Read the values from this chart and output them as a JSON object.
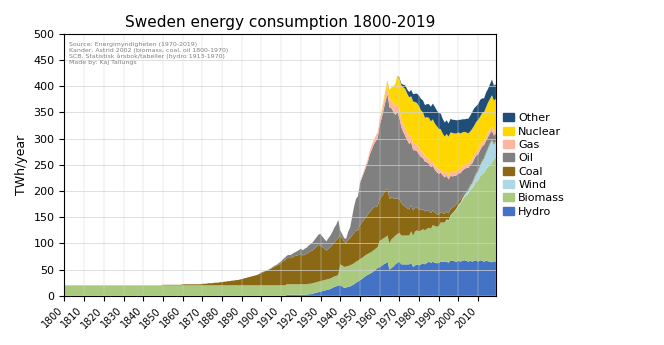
{
  "title": "Sweden energy consumption 1800-2019",
  "ylabel": "TWh/year",
  "source_text": "Source: Energimyndigheten (1970-2019)\nKander, Astrid 2002 (biomass, coal, oil 1800-1970)\nSCB, Statistisk årsbok/tabeller (hydro 1913-1970)\nMade by: Kaj Tallungs",
  "colors": {
    "Hydro": "#4472C4",
    "Biomass": "#a9c97e",
    "Wind": "#add8e6",
    "Coal": "#8B6914",
    "Oil": "#808080",
    "Gas": "#FFB6A0",
    "Nuclear": "#FFD700",
    "Other": "#1F4E79"
  },
  "years": [
    1800,
    1801,
    1802,
    1803,
    1804,
    1805,
    1806,
    1807,
    1808,
    1809,
    1810,
    1811,
    1812,
    1813,
    1814,
    1815,
    1816,
    1817,
    1818,
    1819,
    1820,
    1821,
    1822,
    1823,
    1824,
    1825,
    1826,
    1827,
    1828,
    1829,
    1830,
    1831,
    1832,
    1833,
    1834,
    1835,
    1836,
    1837,
    1838,
    1839,
    1840,
    1841,
    1842,
    1843,
    1844,
    1845,
    1846,
    1847,
    1848,
    1849,
    1850,
    1851,
    1852,
    1853,
    1854,
    1855,
    1856,
    1857,
    1858,
    1859,
    1860,
    1861,
    1862,
    1863,
    1864,
    1865,
    1866,
    1867,
    1868,
    1869,
    1870,
    1871,
    1872,
    1873,
    1874,
    1875,
    1876,
    1877,
    1878,
    1879,
    1880,
    1881,
    1882,
    1883,
    1884,
    1885,
    1886,
    1887,
    1888,
    1889,
    1890,
    1891,
    1892,
    1893,
    1894,
    1895,
    1896,
    1897,
    1898,
    1899,
    1900,
    1901,
    1902,
    1903,
    1904,
    1905,
    1906,
    1907,
    1908,
    1909,
    1910,
    1911,
    1912,
    1913,
    1914,
    1915,
    1916,
    1917,
    1918,
    1919,
    1920,
    1921,
    1922,
    1923,
    1924,
    1925,
    1926,
    1927,
    1928,
    1929,
    1930,
    1931,
    1932,
    1933,
    1934,
    1935,
    1936,
    1937,
    1938,
    1939,
    1940,
    1941,
    1942,
    1943,
    1944,
    1945,
    1946,
    1947,
    1948,
    1949,
    1950,
    1951,
    1952,
    1953,
    1954,
    1955,
    1956,
    1957,
    1958,
    1959,
    1960,
    1961,
    1962,
    1963,
    1964,
    1965,
    1966,
    1967,
    1968,
    1969,
    1970,
    1971,
    1972,
    1973,
    1974,
    1975,
    1976,
    1977,
    1978,
    1979,
    1980,
    1981,
    1982,
    1983,
    1984,
    1985,
    1986,
    1987,
    1988,
    1989,
    1990,
    1991,
    1992,
    1993,
    1994,
    1995,
    1996,
    1997,
    1998,
    1999,
    2000,
    2001,
    2002,
    2003,
    2004,
    2005,
    2006,
    2007,
    2008,
    2009,
    2010,
    2011,
    2012,
    2013,
    2014,
    2015,
    2016,
    2017,
    2018,
    2019
  ],
  "biomass": [
    20,
    20,
    20,
    20,
    20,
    20,
    20,
    20,
    20,
    20,
    20,
    20,
    20,
    20,
    20,
    20,
    20,
    20,
    20,
    20,
    20,
    20,
    20,
    20,
    20,
    20,
    20,
    20,
    20,
    20,
    20,
    20,
    20,
    20,
    20,
    20,
    20,
    20,
    20,
    20,
    20,
    20,
    20,
    20,
    20,
    20,
    20,
    20,
    20,
    20,
    20,
    20,
    20,
    20,
    20,
    20,
    20,
    20,
    20,
    20,
    20,
    20,
    20,
    20,
    20,
    20,
    20,
    20,
    20,
    20,
    20,
    20,
    20,
    20,
    20,
    20,
    20,
    20,
    20,
    20,
    20,
    20,
    20,
    20,
    20,
    20,
    20,
    20,
    20,
    20,
    20,
    20,
    20,
    20,
    20,
    20,
    20,
    20,
    20,
    20,
    20,
    20,
    20,
    20,
    20,
    20,
    20,
    20,
    20,
    20,
    20,
    20,
    20,
    20,
    20,
    20,
    20,
    20,
    20,
    20,
    20,
    20,
    20,
    20,
    20,
    20,
    20,
    20,
    20,
    20,
    20,
    20,
    20,
    20,
    20,
    20,
    20,
    20,
    20,
    20,
    40,
    40,
    40,
    40,
    40,
    40,
    40,
    40,
    40,
    40,
    40,
    40,
    40,
    40,
    40,
    40,
    40,
    40,
    40,
    40,
    50,
    50,
    50,
    50,
    50,
    50,
    55,
    55,
    55,
    55,
    55,
    55,
    55,
    55,
    55,
    55,
    60,
    60,
    65,
    65,
    65,
    65,
    65,
    65,
    65,
    65,
    65,
    70,
    70,
    70,
    70,
    75,
    75,
    75,
    80,
    80,
    85,
    90,
    95,
    100,
    105,
    110,
    115,
    120,
    125,
    130,
    135,
    140,
    145,
    150,
    155,
    160,
    165,
    170,
    175,
    180,
    185,
    190,
    195,
    200
  ],
  "hydro": [
    0,
    0,
    0,
    0,
    0,
    0,
    0,
    0,
    0,
    0,
    0,
    0,
    0,
    0,
    0,
    0,
    0,
    0,
    0,
    0,
    0,
    0,
    0,
    0,
    0,
    0,
    0,
    0,
    0,
    0,
    0,
    0,
    0,
    0,
    0,
    0,
    0,
    0,
    0,
    0,
    0,
    0,
    0,
    0,
    0,
    0,
    0,
    0,
    0,
    0,
    0,
    0,
    0,
    0,
    0,
    0,
    0,
    0,
    0,
    0,
    0,
    0,
    0,
    0,
    0,
    0,
    0,
    0,
    0,
    0,
    0,
    0,
    0,
    0,
    0,
    0,
    0,
    0,
    0,
    0,
    0,
    0,
    0,
    0,
    0,
    0,
    0,
    0,
    0,
    0,
    0,
    0,
    0,
    0,
    0,
    0,
    0,
    0,
    0,
    0,
    0,
    0,
    0,
    0,
    0,
    0,
    0,
    0,
    0,
    0,
    0,
    0,
    0,
    2,
    2,
    2,
    2,
    2,
    2,
    2,
    2,
    2,
    2,
    2,
    3,
    3,
    4,
    5,
    6,
    7,
    8,
    9,
    10,
    11,
    12,
    13,
    15,
    17,
    18,
    20,
    20,
    18,
    15,
    16,
    17,
    18,
    20,
    22,
    25,
    27,
    30,
    32,
    35,
    38,
    40,
    42,
    44,
    47,
    50,
    53,
    55,
    57,
    60,
    62,
    65,
    50,
    53,
    56,
    60,
    63,
    65,
    60,
    60,
    60,
    60,
    60,
    63,
    55,
    58,
    60,
    58,
    60,
    62,
    60,
    63,
    65,
    63,
    65,
    63,
    62,
    63,
    65,
    65,
    65,
    65,
    63,
    68,
    67,
    66,
    65,
    67,
    65,
    67,
    68,
    67,
    65,
    67,
    65,
    67,
    68,
    65,
    68,
    67,
    65,
    67,
    66,
    65,
    64,
    66,
    65
  ],
  "wind": [
    0,
    0,
    0,
    0,
    0,
    0,
    0,
    0,
    0,
    0,
    0,
    0,
    0,
    0,
    0,
    0,
    0,
    0,
    0,
    0,
    0,
    0,
    0,
    0,
    0,
    0,
    0,
    0,
    0,
    0,
    0,
    0,
    0,
    0,
    0,
    0,
    0,
    0,
    0,
    0,
    0,
    0,
    0,
    0,
    0,
    0,
    0,
    0,
    0,
    0,
    0,
    0,
    0,
    0,
    0,
    0,
    0,
    0,
    0,
    0,
    0,
    0,
    0,
    0,
    0,
    0,
    0,
    0,
    0,
    0,
    0,
    0,
    0,
    0,
    0,
    0,
    0,
    0,
    0,
    0,
    0,
    0,
    0,
    0,
    0,
    0,
    0,
    0,
    0,
    0,
    0,
    0,
    0,
    0,
    0,
    0,
    0,
    0,
    0,
    0,
    0,
    0,
    0,
    0,
    0,
    0,
    0,
    0,
    0,
    0,
    0,
    0,
    0,
    0,
    0,
    0,
    0,
    0,
    0,
    0,
    0,
    0,
    0,
    0,
    0,
    0,
    0,
    0,
    0,
    0,
    0,
    0,
    0,
    0,
    0,
    0,
    0,
    0,
    0,
    0,
    0,
    0,
    0,
    0,
    0,
    0,
    0,
    0,
    0,
    0,
    0,
    0,
    0,
    0,
    0,
    0,
    0,
    0,
    0,
    0,
    0,
    0,
    0,
    0,
    0,
    0,
    0,
    0,
    0,
    0,
    0,
    0,
    0,
    0,
    0,
    0,
    0,
    0,
    0,
    0,
    0,
    0,
    0,
    0,
    0,
    0,
    0,
    0,
    0,
    0,
    0,
    0,
    0,
    0,
    1,
    1,
    1,
    1,
    1,
    2,
    2,
    3,
    4,
    5,
    6,
    7,
    8,
    10,
    12,
    15,
    18,
    20,
    25,
    27,
    30,
    35,
    40,
    43,
    28,
    30
  ],
  "coal": [
    0,
    0,
    0,
    0,
    0,
    0,
    0,
    0,
    0,
    0,
    0,
    0,
    0,
    0,
    0,
    0,
    0,
    0,
    0,
    0,
    0,
    0,
    0,
    0,
    0,
    0,
    0,
    0,
    0,
    0,
    0,
    0,
    0,
    0,
    0,
    0,
    0,
    0,
    0,
    0,
    0,
    0,
    0,
    0,
    0,
    0,
    0,
    0,
    0,
    0,
    1,
    1,
    1,
    1,
    1,
    1,
    1,
    1,
    1,
    1,
    2,
    2,
    2,
    2,
    2,
    2,
    2,
    2,
    2,
    2,
    3,
    3,
    3,
    4,
    4,
    4,
    5,
    5,
    5,
    6,
    6,
    7,
    7,
    8,
    8,
    9,
    9,
    10,
    10,
    11,
    12,
    13,
    14,
    15,
    16,
    17,
    18,
    19,
    20,
    22,
    24,
    25,
    27,
    28,
    30,
    32,
    34,
    36,
    38,
    40,
    43,
    46,
    48,
    50,
    50,
    50,
    52,
    54,
    55,
    56,
    58,
    55,
    57,
    58,
    60,
    62,
    63,
    65,
    68,
    70,
    68,
    64,
    60,
    55,
    58,
    60,
    62,
    65,
    68,
    70,
    55,
    52,
    48,
    45,
    50,
    52,
    55,
    58,
    60,
    58,
    65,
    68,
    70,
    72,
    75,
    78,
    80,
    82,
    80,
    78,
    80,
    82,
    85,
    90,
    90,
    85,
    80,
    75,
    70,
    68,
    65,
    62,
    58,
    55,
    52,
    50,
    50,
    48,
    45,
    43,
    42,
    40,
    38,
    36,
    35,
    32,
    30,
    28,
    26,
    24,
    22,
    20,
    18,
    16,
    15,
    13,
    12,
    10,
    9,
    8,
    7,
    6,
    5,
    4,
    3,
    2,
    2,
    2,
    2,
    2,
    2,
    2,
    2,
    2,
    2,
    2,
    2,
    2,
    2,
    2
  ],
  "oil": [
    0,
    0,
    0,
    0,
    0,
    0,
    0,
    0,
    0,
    0,
    0,
    0,
    0,
    0,
    0,
    0,
    0,
    0,
    0,
    0,
    0,
    0,
    0,
    0,
    0,
    0,
    0,
    0,
    0,
    0,
    0,
    0,
    0,
    0,
    0,
    0,
    0,
    0,
    0,
    0,
    0,
    0,
    0,
    0,
    0,
    0,
    0,
    0,
    0,
    0,
    0,
    0,
    0,
    0,
    0,
    0,
    0,
    0,
    0,
    0,
    0,
    0,
    0,
    0,
    0,
    0,
    0,
    0,
    0,
    0,
    0,
    0,
    0,
    0,
    0,
    0,
    0,
    0,
    0,
    0,
    0,
    0,
    0,
    0,
    0,
    0,
    0,
    0,
    0,
    0,
    0,
    0,
    0,
    0,
    0,
    0,
    0,
    0,
    0,
    0,
    1,
    1,
    1,
    1,
    1,
    1,
    2,
    2,
    2,
    3,
    3,
    4,
    5,
    5,
    6,
    6,
    7,
    7,
    8,
    9,
    10,
    10,
    11,
    12,
    13,
    14,
    15,
    17,
    18,
    20,
    22,
    20,
    18,
    18,
    20,
    22,
    25,
    28,
    30,
    35,
    10,
    8,
    7,
    8,
    15,
    20,
    35,
    50,
    60,
    65,
    80,
    85,
    90,
    95,
    100,
    110,
    115,
    120,
    125,
    130,
    140,
    150,
    160,
    170,
    180,
    175,
    170,
    165,
    160,
    165,
    155,
    145,
    140,
    135,
    130,
    125,
    120,
    115,
    110,
    108,
    105,
    100,
    98,
    95,
    92,
    90,
    88,
    85,
    82,
    80,
    78,
    75,
    72,
    70,
    68,
    65,
    63,
    60,
    58,
    55,
    53,
    50,
    48,
    45,
    43,
    40,
    38,
    36,
    35,
    33,
    30,
    28,
    26,
    24,
    22,
    20,
    18,
    16,
    15,
    13
  ],
  "gas": [
    0,
    0,
    0,
    0,
    0,
    0,
    0,
    0,
    0,
    0,
    0,
    0,
    0,
    0,
    0,
    0,
    0,
    0,
    0,
    0,
    0,
    0,
    0,
    0,
    0,
    0,
    0,
    0,
    0,
    0,
    0,
    0,
    0,
    0,
    0,
    0,
    0,
    0,
    0,
    0,
    0,
    0,
    0,
    0,
    0,
    0,
    0,
    0,
    0,
    0,
    0,
    0,
    0,
    0,
    0,
    0,
    0,
    0,
    0,
    0,
    0,
    0,
    0,
    0,
    0,
    0,
    0,
    0,
    0,
    0,
    0,
    0,
    0,
    0,
    0,
    0,
    0,
    0,
    0,
    0,
    0,
    0,
    0,
    0,
    0,
    0,
    0,
    0,
    0,
    0,
    0,
    0,
    0,
    0,
    0,
    0,
    0,
    0,
    0,
    0,
    0,
    0,
    0,
    0,
    0,
    0,
    0,
    0,
    0,
    0,
    0,
    0,
    0,
    0,
    0,
    0,
    0,
    0,
    0,
    0,
    0,
    0,
    0,
    0,
    0,
    0,
    0,
    0,
    0,
    0,
    0,
    0,
    0,
    0,
    0,
    0,
    0,
    0,
    0,
    0,
    0,
    0,
    0,
    0,
    0,
    0,
    0,
    0,
    0,
    0,
    2,
    3,
    4,
    5,
    6,
    7,
    8,
    9,
    10,
    11,
    12,
    13,
    14,
    15,
    15,
    15,
    15,
    15,
    15,
    15,
    15,
    15,
    15,
    15,
    14,
    14,
    13,
    13,
    12,
    12,
    12,
    11,
    11,
    10,
    10,
    10,
    9,
    9,
    8,
    8,
    8,
    8,
    8,
    8,
    8,
    8,
    8,
    8,
    8,
    8,
    8,
    8,
    8,
    8,
    8,
    8,
    8,
    8,
    8,
    8,
    8,
    8,
    8,
    8,
    8,
    8,
    8,
    8,
    8,
    8
  ],
  "nuclear": [
    0,
    0,
    0,
    0,
    0,
    0,
    0,
    0,
    0,
    0,
    0,
    0,
    0,
    0,
    0,
    0,
    0,
    0,
    0,
    0,
    0,
    0,
    0,
    0,
    0,
    0,
    0,
    0,
    0,
    0,
    0,
    0,
    0,
    0,
    0,
    0,
    0,
    0,
    0,
    0,
    0,
    0,
    0,
    0,
    0,
    0,
    0,
    0,
    0,
    0,
    0,
    0,
    0,
    0,
    0,
    0,
    0,
    0,
    0,
    0,
    0,
    0,
    0,
    0,
    0,
    0,
    0,
    0,
    0,
    0,
    0,
    0,
    0,
    0,
    0,
    0,
    0,
    0,
    0,
    0,
    0,
    0,
    0,
    0,
    0,
    0,
    0,
    0,
    0,
    0,
    0,
    0,
    0,
    0,
    0,
    0,
    0,
    0,
    0,
    0,
    0,
    0,
    0,
    0,
    0,
    0,
    0,
    0,
    0,
    0,
    0,
    0,
    0,
    0,
    0,
    0,
    0,
    0,
    0,
    0,
    0,
    0,
    0,
    0,
    0,
    0,
    0,
    0,
    0,
    0,
    0,
    0,
    0,
    0,
    0,
    0,
    0,
    0,
    0,
    0,
    0,
    0,
    0,
    0,
    0,
    0,
    0,
    0,
    0,
    0,
    0,
    0,
    0,
    0,
    0,
    0,
    0,
    0,
    0,
    0,
    0,
    2,
    5,
    8,
    12,
    18,
    25,
    35,
    45,
    55,
    60,
    65,
    70,
    75,
    75,
    75,
    75,
    80,
    80,
    80,
    80,
    78,
    76,
    74,
    76,
    78,
    78,
    80,
    80,
    80,
    78,
    75,
    72,
    70,
    72,
    74,
    75,
    75,
    73,
    72,
    70,
    68,
    65,
    63,
    60,
    58,
    56,
    58,
    56,
    56,
    58,
    56,
    56,
    55,
    56,
    58,
    58,
    60,
    59,
    58
  ],
  "other": [
    0,
    0,
    0,
    0,
    0,
    0,
    0,
    0,
    0,
    0,
    0,
    0,
    0,
    0,
    0,
    0,
    0,
    0,
    0,
    0,
    0,
    0,
    0,
    0,
    0,
    0,
    0,
    0,
    0,
    0,
    0,
    0,
    0,
    0,
    0,
    0,
    0,
    0,
    0,
    0,
    0,
    0,
    0,
    0,
    0,
    0,
    0,
    0,
    0,
    0,
    0,
    0,
    0,
    0,
    0,
    0,
    0,
    0,
    0,
    0,
    0,
    0,
    0,
    0,
    0,
    0,
    0,
    0,
    0,
    0,
    0,
    0,
    0,
    0,
    0,
    0,
    0,
    0,
    0,
    0,
    0,
    0,
    0,
    0,
    0,
    0,
    0,
    0,
    0,
    0,
    0,
    0,
    0,
    0,
    0,
    0,
    0,
    0,
    0,
    0,
    0,
    0,
    0,
    0,
    0,
    0,
    0,
    0,
    0,
    0,
    0,
    0,
    0,
    0,
    0,
    0,
    0,
    0,
    0,
    0,
    0,
    0,
    0,
    0,
    0,
    0,
    0,
    0,
    0,
    0,
    0,
    0,
    0,
    0,
    0,
    0,
    0,
    0,
    0,
    0,
    0,
    0,
    0,
    0,
    0,
    0,
    0,
    0,
    0,
    0,
    0,
    0,
    0,
    0,
    0,
    0,
    0,
    0,
    0,
    0,
    0,
    0,
    0,
    0,
    0,
    0,
    0,
    0,
    0,
    0,
    2,
    3,
    5,
    7,
    8,
    10,
    12,
    14,
    16,
    18,
    20,
    22,
    23,
    24,
    25,
    26,
    28,
    30,
    32,
    30,
    30,
    30,
    28,
    27,
    26,
    25,
    26,
    25,
    26,
    25,
    24,
    26,
    25,
    24,
    26,
    28,
    30,
    32,
    33,
    30,
    30,
    32,
    28,
    26,
    28,
    26,
    28,
    30,
    28,
    28
  ]
}
